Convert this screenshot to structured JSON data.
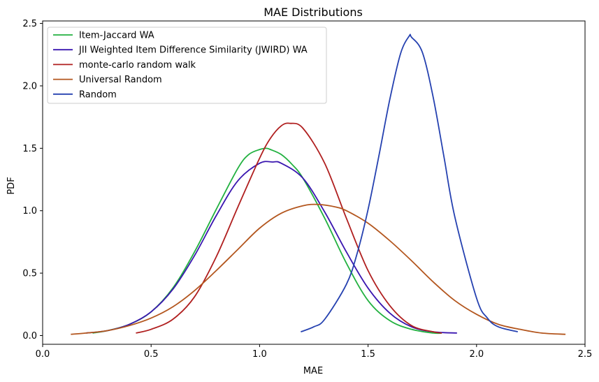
{
  "chart_data": {
    "type": "line",
    "title": "MAE Distributions",
    "xlabel": "MAE",
    "ylabel": "PDF",
    "xlim": [
      0.0,
      2.5
    ],
    "ylim": [
      -0.07,
      2.52
    ],
    "xticks": [
      0.0,
      0.5,
      1.0,
      1.5,
      2.0,
      2.5
    ],
    "xtick_labels": [
      "0.0",
      "0.5",
      "1.0",
      "1.5",
      "2.0",
      "2.5"
    ],
    "yticks": [
      0.0,
      0.5,
      1.0,
      1.5,
      2.0,
      2.5
    ],
    "ytick_labels": [
      "0.0",
      "0.5",
      "1.0",
      "1.5",
      "2.0",
      "2.5"
    ],
    "grid": false,
    "legend_position": "top-left",
    "series": [
      {
        "name": "Item-Jaccard WA",
        "color": "#22b140",
        "x": [
          0.23,
          0.3,
          0.4,
          0.5,
          0.6,
          0.7,
          0.8,
          0.9,
          0.95,
          1.0,
          1.03,
          1.05,
          1.1,
          1.15,
          1.2,
          1.3,
          1.4,
          1.5,
          1.6,
          1.7,
          1.8,
          1.84
        ],
        "values": [
          0.02,
          0.04,
          0.09,
          0.19,
          0.38,
          0.67,
          1.01,
          1.34,
          1.45,
          1.49,
          1.5,
          1.49,
          1.45,
          1.37,
          1.26,
          0.94,
          0.58,
          0.28,
          0.12,
          0.05,
          0.02,
          0.02
        ]
      },
      {
        "name": "JII Weighted Item Difference Similarity (JWIRD) WA",
        "color": "#3a16b0",
        "x": [
          0.2,
          0.3,
          0.4,
          0.5,
          0.6,
          0.7,
          0.8,
          0.9,
          1.0,
          1.06,
          1.1,
          1.2,
          1.3,
          1.4,
          1.5,
          1.6,
          1.7,
          1.8,
          1.91
        ],
        "values": [
          0.02,
          0.04,
          0.09,
          0.19,
          0.37,
          0.64,
          0.96,
          1.24,
          1.38,
          1.39,
          1.38,
          1.26,
          0.99,
          0.67,
          0.38,
          0.18,
          0.07,
          0.03,
          0.02
        ]
      },
      {
        "name": "monte-carlo random walk",
        "color": "#b01f1f",
        "x": [
          0.43,
          0.5,
          0.6,
          0.7,
          0.8,
          0.9,
          1.0,
          1.05,
          1.1,
          1.14,
          1.2,
          1.3,
          1.4,
          1.5,
          1.6,
          1.7,
          1.8,
          1.84
        ],
        "values": [
          0.02,
          0.05,
          0.13,
          0.31,
          0.63,
          1.03,
          1.42,
          1.58,
          1.68,
          1.7,
          1.66,
          1.38,
          0.94,
          0.52,
          0.24,
          0.08,
          0.03,
          0.02
        ]
      },
      {
        "name": "Universal Random",
        "color": "#b3561e",
        "x": [
          0.13,
          0.2,
          0.3,
          0.4,
          0.5,
          0.6,
          0.7,
          0.8,
          0.9,
          1.0,
          1.1,
          1.2,
          1.27,
          1.35,
          1.4,
          1.5,
          1.6,
          1.7,
          1.8,
          1.9,
          2.0,
          2.1,
          2.2,
          2.3,
          2.41
        ],
        "values": [
          0.01,
          0.02,
          0.04,
          0.08,
          0.14,
          0.23,
          0.36,
          0.52,
          0.69,
          0.86,
          0.98,
          1.04,
          1.05,
          1.03,
          1.0,
          0.9,
          0.76,
          0.6,
          0.43,
          0.28,
          0.17,
          0.09,
          0.05,
          0.02,
          0.01
        ]
      },
      {
        "name": "Random",
        "color": "#2541b0",
        "x": [
          1.19,
          1.25,
          1.3,
          1.4,
          1.45,
          1.5,
          1.55,
          1.6,
          1.65,
          1.69,
          1.7,
          1.75,
          1.8,
          1.85,
          1.9,
          2.0,
          2.05,
          2.1,
          2.19
        ],
        "values": [
          0.03,
          0.07,
          0.13,
          0.41,
          0.66,
          1.01,
          1.44,
          1.89,
          2.26,
          2.4,
          2.39,
          2.27,
          1.91,
          1.43,
          0.95,
          0.3,
          0.14,
          0.07,
          0.03
        ]
      }
    ]
  }
}
